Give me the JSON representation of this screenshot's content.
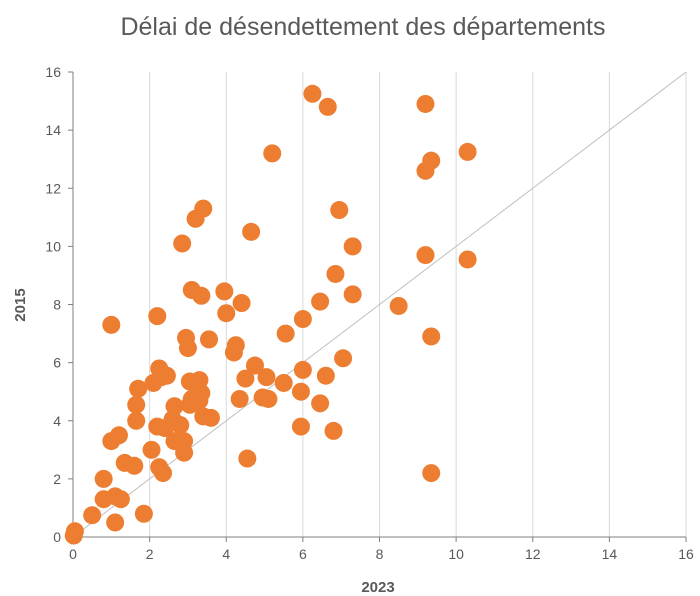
{
  "chart_data": {
    "type": "scatter",
    "title": "Délai de désendettement des départements",
    "xlabel": "2023",
    "ylabel": "2015",
    "xlim": [
      0,
      16
    ],
    "ylim": [
      0,
      16
    ],
    "x_ticks": [
      "0",
      "2",
      "4",
      "6",
      "8",
      "10",
      "12",
      "14",
      "16"
    ],
    "y_ticks": [
      "0",
      "2",
      "4",
      "6",
      "8",
      "10",
      "12",
      "14",
      "16"
    ],
    "grid": "vertical",
    "reference_line": "y = x",
    "colors": {
      "marker": "#ED7D31",
      "grid": "#D9D9D9",
      "reference_line": "#BFBFBF",
      "axis": "#7F7F7F"
    },
    "series": [
      {
        "points": [
          [
            0.02,
            0.05
          ],
          [
            0.05,
            0.2
          ],
          [
            0.5,
            0.75
          ],
          [
            1.1,
            0.5
          ],
          [
            1.85,
            0.8
          ],
          [
            0.8,
            2.0
          ],
          [
            0.8,
            1.3
          ],
          [
            1.1,
            1.4
          ],
          [
            1.25,
            1.3
          ],
          [
            1.0,
            3.3
          ],
          [
            1.2,
            3.5
          ],
          [
            1.35,
            2.55
          ],
          [
            1.6,
            2.45
          ],
          [
            1.65,
            4.0
          ],
          [
            1.65,
            4.55
          ],
          [
            1.7,
            5.1
          ],
          [
            2.05,
            3.0
          ],
          [
            2.1,
            5.3
          ],
          [
            2.2,
            3.8
          ],
          [
            2.25,
            5.8
          ],
          [
            2.25,
            2.4
          ],
          [
            2.3,
            5.5
          ],
          [
            2.35,
            2.2
          ],
          [
            2.4,
            3.75
          ],
          [
            2.45,
            5.55
          ],
          [
            2.6,
            4.05
          ],
          [
            2.65,
            3.3
          ],
          [
            2.65,
            4.5
          ],
          [
            2.8,
            3.85
          ],
          [
            2.9,
            3.3
          ],
          [
            2.9,
            2.9
          ],
          [
            2.95,
            6.85
          ],
          [
            3.0,
            6.5
          ],
          [
            3.05,
            5.35
          ],
          [
            3.05,
            4.55
          ],
          [
            3.1,
            4.75
          ],
          [
            3.2,
            4.75
          ],
          [
            3.25,
            5.3
          ],
          [
            3.3,
            5.4
          ],
          [
            3.35,
            4.95
          ],
          [
            3.3,
            4.7
          ],
          [
            3.4,
            4.15
          ],
          [
            3.55,
            6.8
          ],
          [
            3.6,
            4.1
          ],
          [
            3.1,
            8.5
          ],
          [
            3.35,
            8.3
          ],
          [
            3.2,
            10.95
          ],
          [
            3.4,
            11.3
          ],
          [
            2.85,
            10.1
          ],
          [
            2.2,
            7.6
          ],
          [
            1.0,
            7.3
          ],
          [
            3.95,
            8.45
          ],
          [
            4.0,
            7.7
          ],
          [
            4.4,
            8.05
          ],
          [
            4.2,
            6.35
          ],
          [
            4.25,
            6.6
          ],
          [
            4.35,
            4.75
          ],
          [
            4.5,
            5.45
          ],
          [
            4.55,
            2.7
          ],
          [
            4.75,
            5.9
          ],
          [
            4.65,
            10.5
          ],
          [
            4.95,
            4.8
          ],
          [
            5.05,
            5.5
          ],
          [
            5.1,
            4.75
          ],
          [
            5.2,
            13.2
          ],
          [
            5.5,
            5.3
          ],
          [
            5.55,
            7.0
          ],
          [
            5.95,
            5.0
          ],
          [
            5.95,
            3.8
          ],
          [
            6.0,
            5.75
          ],
          [
            6.0,
            7.5
          ],
          [
            6.25,
            15.25
          ],
          [
            6.45,
            4.6
          ],
          [
            6.45,
            8.1
          ],
          [
            6.6,
            5.55
          ],
          [
            6.65,
            14.8
          ],
          [
            6.8,
            3.65
          ],
          [
            6.85,
            9.05
          ],
          [
            6.95,
            11.25
          ],
          [
            7.05,
            6.15
          ],
          [
            7.3,
            10.0
          ],
          [
            7.3,
            8.35
          ],
          [
            8.5,
            7.95
          ],
          [
            9.2,
            12.6
          ],
          [
            9.2,
            14.9
          ],
          [
            9.2,
            9.7
          ],
          [
            9.35,
            12.95
          ],
          [
            9.35,
            6.9
          ],
          [
            9.35,
            2.2
          ],
          [
            10.3,
            13.25
          ],
          [
            10.3,
            9.55
          ]
        ]
      }
    ]
  }
}
